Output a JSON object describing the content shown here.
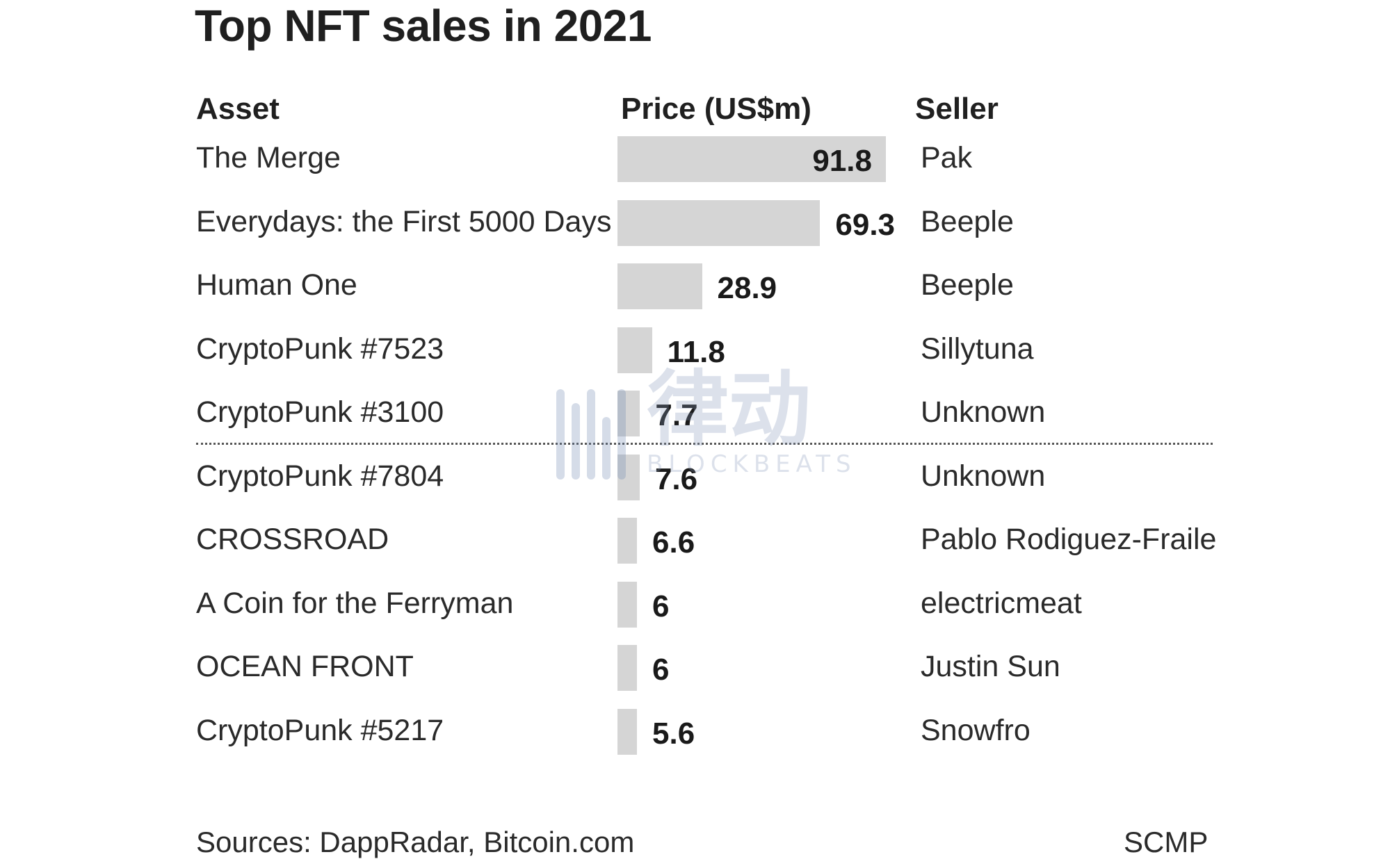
{
  "chart_data": {
    "type": "bar",
    "title": "Top NFT sales in 2021",
    "columns": [
      "Asset",
      "Price (US$m)",
      "Seller"
    ],
    "categories": [
      "The Merge",
      "Everydays: the First 5000 Days",
      "Human One",
      "CryptoPunk #7523",
      "CryptoPunk #3100",
      "CryptoPunk #7804",
      "CROSSROAD",
      "A Coin for the Ferryman",
      "OCEAN FRONT",
      "CryptoPunk #5217"
    ],
    "values": [
      91.8,
      69.3,
      28.9,
      11.8,
      7.7,
      7.6,
      6.6,
      6,
      6,
      5.6
    ],
    "sellers": [
      "Pak",
      "Beeple",
      "Beeple",
      "Sillytuna",
      "Unknown",
      "Unknown",
      "Pablo Rodiguez-Fraile",
      "electricmeat",
      "Justin Sun",
      "Snowfro"
    ],
    "xlim": [
      0,
      91.8
    ],
    "bar_color": "#d5d5d5",
    "grid": false,
    "divider_after_row": 5,
    "source": "Sources: DappRadar, Bitcoin.com",
    "credit": "SCMP"
  },
  "watermark": {
    "cn": "律动",
    "en": "BLOCKBEATS"
  }
}
